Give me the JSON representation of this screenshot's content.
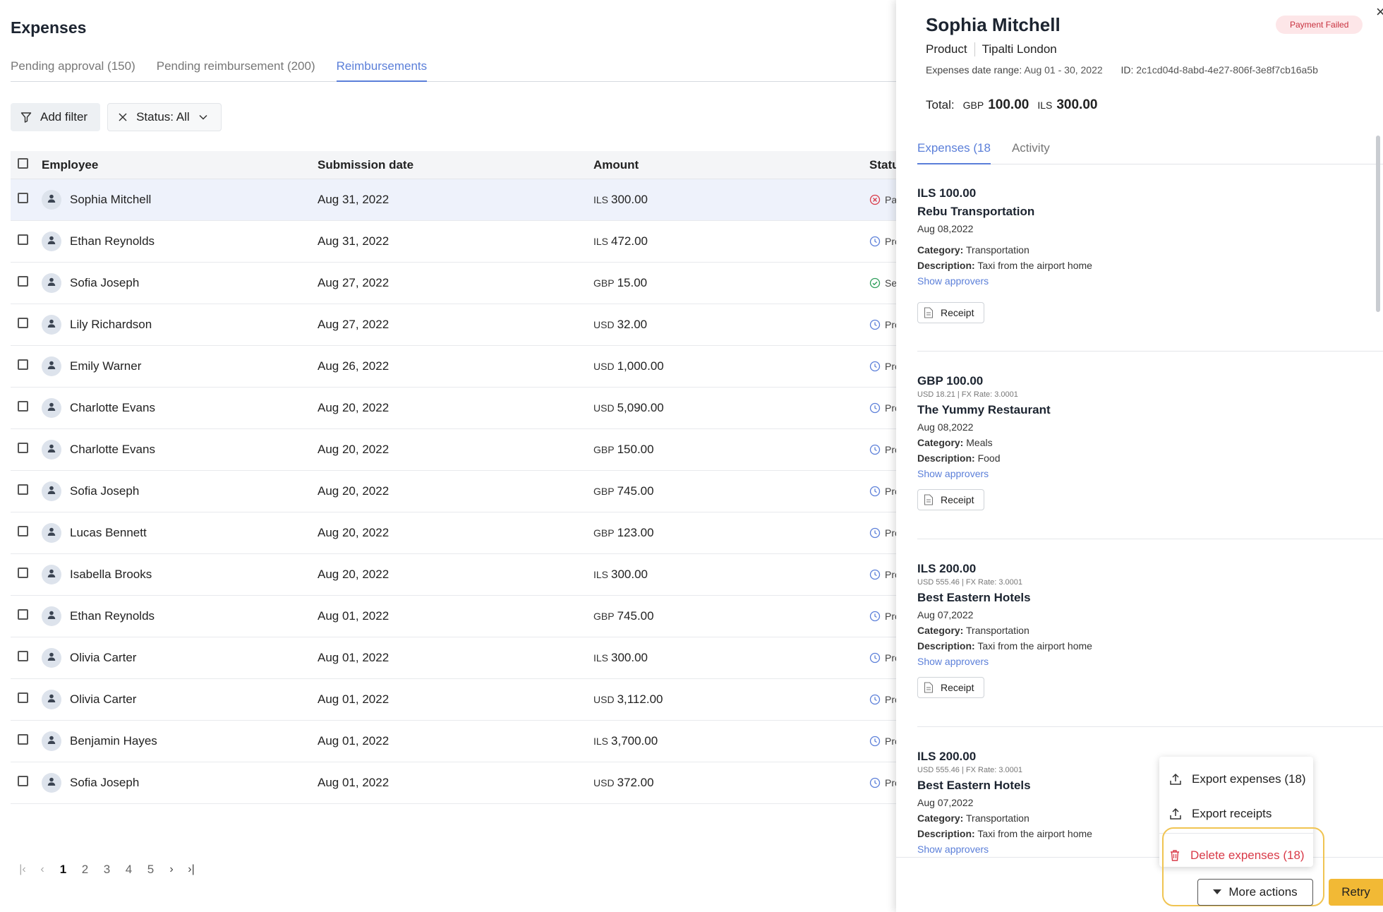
{
  "page": {
    "title": "Expenses",
    "tabs": [
      {
        "label": "Pending approval (150)"
      },
      {
        "label": "Pending reimbursement (200)"
      },
      {
        "label": "Reimbursements"
      }
    ],
    "active_tab": 2,
    "filters": {
      "add_filter": "Add filter",
      "status": "Status: All"
    }
  },
  "table": {
    "headers": {
      "employee": "Employee",
      "date": "Submission date",
      "amount": "Amount",
      "status": "Status"
    },
    "rows": [
      {
        "employee": "Sophia Mitchell",
        "date": "Aug 31, 2022",
        "currency": "ILS",
        "amount": "300.00",
        "status_icon": "failed-icon",
        "status": "Payment Failed",
        "selected": true
      },
      {
        "employee": "Ethan Reynolds",
        "date": "Aug 31, 2022",
        "currency": "ILS",
        "amount": "472.00",
        "status_icon": "clock-icon",
        "status": "Processing"
      },
      {
        "employee": "Sofia Joseph",
        "date": "Aug 27, 2022",
        "currency": "GBP",
        "amount": "15.00",
        "status_icon": "check-circle-icon",
        "status": "Sent"
      },
      {
        "employee": "Lily Richardson",
        "date": "Aug 27, 2022",
        "currency": "USD",
        "amount": "32.00",
        "status_icon": "clock-icon",
        "status": "Processing"
      },
      {
        "employee": "Emily Warner",
        "date": "Aug 26, 2022",
        "currency": "USD",
        "amount": "1,000.00",
        "status_icon": "clock-icon",
        "status": "Processing"
      },
      {
        "employee": "Charlotte Evans",
        "date": "Aug 20, 2022",
        "currency": "USD",
        "amount": "5,090.00",
        "status_icon": "clock-icon",
        "status": "Processing"
      },
      {
        "employee": "Charlotte Evans",
        "date": "Aug 20, 2022",
        "currency": "GBP",
        "amount": "150.00",
        "status_icon": "clock-icon",
        "status": "Processing"
      },
      {
        "employee": "Sofia Joseph",
        "date": "Aug 20, 2022",
        "currency": "GBP",
        "amount": "745.00",
        "status_icon": "clock-icon",
        "status": "Processing"
      },
      {
        "employee": "Lucas Bennett",
        "date": "Aug 20, 2022",
        "currency": "GBP",
        "amount": "123.00",
        "status_icon": "clock-icon",
        "status": "Processing"
      },
      {
        "employee": "Isabella Brooks",
        "date": "Aug 20, 2022",
        "currency": "ILS",
        "amount": "300.00",
        "status_icon": "clock-icon",
        "status": "Processing"
      },
      {
        "employee": "Ethan Reynolds",
        "date": "Aug 01, 2022",
        "currency": "GBP",
        "amount": "745.00",
        "status_icon": "clock-icon",
        "status": "Processing"
      },
      {
        "employee": "Olivia Carter",
        "date": "Aug 01, 2022",
        "currency": "ILS",
        "amount": "300.00",
        "status_icon": "clock-icon",
        "status": "Processing"
      },
      {
        "employee": "Olivia Carter",
        "date": "Aug 01, 2022",
        "currency": "USD",
        "amount": "3,112.00",
        "status_icon": "clock-icon",
        "status": "Processing"
      },
      {
        "employee": "Benjamin Hayes",
        "date": "Aug 01, 2022",
        "currency": "ILS",
        "amount": "3,700.00",
        "status_icon": "clock-icon",
        "status": "Processing"
      },
      {
        "employee": "Sofia Joseph",
        "date": "Aug 01, 2022",
        "currency": "USD",
        "amount": "372.00",
        "status_icon": "clock-icon",
        "status": "Processing"
      }
    ]
  },
  "pagination": {
    "pages": [
      "1",
      "2",
      "3",
      "4",
      "5"
    ],
    "current": "1"
  },
  "panel": {
    "name": "Sophia Mitchell",
    "badge": "Payment Failed",
    "department": "Product",
    "entity": "Tipalti London",
    "range_label": "Expenses date range:",
    "range_value": "Aug 01 - 30, 2022",
    "id_label": "ID:",
    "id_value": "2c1cd04d-8abd-4e27-806f-3e8f7cb16a5b",
    "total_label": "Total:",
    "totals": [
      {
        "currency": "GBP",
        "value": "100.00"
      },
      {
        "currency": "ILS",
        "value": "300.00"
      }
    ],
    "tabs": [
      {
        "label": "Expenses (18"
      },
      {
        "label": "Activity"
      }
    ],
    "expenses": [
      {
        "amount": "ILS 100.00",
        "fx": "",
        "merchant": "Rebu Transportation",
        "date": "Aug 08,2022",
        "category_label": "Category:",
        "category": "Transportation",
        "description_label": "Description:",
        "description": "Taxi from the airport home",
        "approvers": "Show approvers",
        "receipt": "Receipt"
      },
      {
        "amount": "GBP 100.00",
        "fx": "USD 18.21 | FX Rate: 3.0001",
        "merchant": "The Yummy Restaurant",
        "date": "Aug 08,2022",
        "category_label": "Category:",
        "category": "Meals",
        "description_label": "Description:",
        "description": "Food",
        "approvers": "Show approvers",
        "receipt": "Receipt"
      },
      {
        "amount": "ILS 200.00",
        "fx": "USD 555.46 | FX Rate: 3.0001",
        "merchant": "Best Eastern Hotels",
        "date": "Aug 07,2022",
        "category_label": "Category:",
        "category": "Transportation",
        "description_label": "Description:",
        "description": "Taxi from the airport home",
        "approvers": "Show approvers",
        "receipt": "Receipt"
      },
      {
        "amount": "ILS 200.00",
        "fx": "USD 555.46 | FX Rate: 3.0001",
        "merchant": "Best Eastern Hotels",
        "date": "Aug 07,2022",
        "category_label": "Category:",
        "category": "Transportation",
        "description_label": "Description:",
        "description": "Taxi from the airport home",
        "approvers": "Show approvers",
        "receipt": ""
      }
    ],
    "menu": {
      "export_expenses": "Export expenses (18)",
      "export_receipts": "Export receipts",
      "delete_expenses": "Delete expenses (18)"
    },
    "more_actions": "More actions",
    "retry": "Retry"
  },
  "colors": {
    "accent": "#5b7fd9",
    "danger": "#d93a48",
    "retry": "#f2b935",
    "highlight": "#f0c452"
  }
}
